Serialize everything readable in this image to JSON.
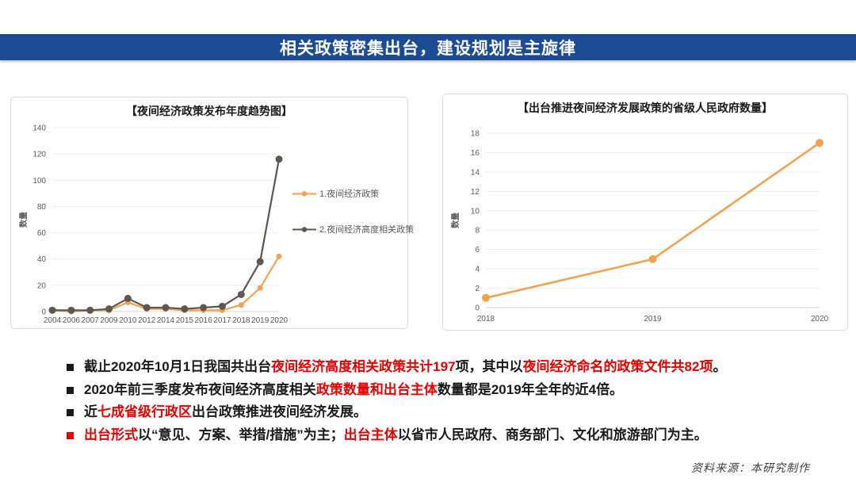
{
  "header": {
    "title": "相关政策密集出台，建设规划是主旋律",
    "bg_color": "#1C4B96",
    "text_color": "#FFFFFF"
  },
  "chart_data": [
    {
      "type": "line",
      "title": "【夜间经济政策发布年度趋势图】",
      "xlabel": "",
      "ylabel": "数量",
      "categories": [
        "2004",
        "2006",
        "2007",
        "2009",
        "2010",
        "2012",
        "2014",
        "2015",
        "2016",
        "2017",
        "2018",
        "2019",
        "2020"
      ],
      "ylim": [
        0,
        140
      ],
      "ystep": 20,
      "grid": true,
      "legend_position": "right",
      "series": [
        {
          "name": "1.夜间经济政策",
          "color": "#F0A24E",
          "values": [
            1,
            0,
            1,
            1,
            7,
            2,
            2,
            1,
            1,
            1,
            5,
            18,
            42
          ]
        },
        {
          "name": "2.夜间经济高度相关政策",
          "color": "#5F564F",
          "values": [
            1,
            1,
            1,
            2,
            10,
            3,
            3,
            2,
            3,
            4,
            13,
            38,
            116
          ]
        }
      ]
    },
    {
      "type": "line",
      "title": "【出台推进夜间经济发展政策的省级人民政府数量】",
      "xlabel": "",
      "ylabel": "数量",
      "categories": [
        "2018",
        "2019",
        "2020"
      ],
      "ylim": [
        0,
        18
      ],
      "ystep": 2,
      "grid": true,
      "legend_position": "none",
      "series": [
        {
          "name": "出台推进夜间经济发展政策的省级人民政府数量",
          "color": "#F0A24E",
          "values": [
            1,
            5,
            17
          ]
        }
      ]
    }
  ],
  "bullets": [
    {
      "marker_color": "#1A1A1A",
      "segments": [
        {
          "text": "截止2020年10月1日我国共出台",
          "color": "#1A1A1A"
        },
        {
          "text": "夜间经济高度相关政策共计197",
          "color": "#E60000"
        },
        {
          "text": "项，其中以",
          "color": "#1A1A1A"
        },
        {
          "text": "夜间经济命名的政策文件共82项",
          "color": "#E60000"
        },
        {
          "text": "。",
          "color": "#1A1A1A"
        }
      ]
    },
    {
      "marker_color": "#1A1A1A",
      "segments": [
        {
          "text": "2020年前三季度发布夜间经济高度相关",
          "color": "#1A1A1A"
        },
        {
          "text": "政策数量和出台主体",
          "color": "#E60000"
        },
        {
          "text": "数量都是2019年全年的近4倍。",
          "color": "#1A1A1A"
        }
      ]
    },
    {
      "marker_color": "#1A1A1A",
      "segments": [
        {
          "text": "近",
          "color": "#1A1A1A"
        },
        {
          "text": "七成省级行政区",
          "color": "#E60000"
        },
        {
          "text": "出台政策推进夜间经济发展。",
          "color": "#1A1A1A"
        }
      ]
    },
    {
      "marker_color": "#E60000",
      "segments": [
        {
          "text": "出台形式",
          "color": "#E60000"
        },
        {
          "text": "以“意见、方案、举措/措施”为主；",
          "color": "#1A1A1A"
        },
        {
          "text": "出台主体",
          "color": "#E60000"
        },
        {
          "text": "以省市人民政府、商务部门、文化和旅游部门为主。",
          "color": "#1A1A1A"
        }
      ]
    }
  ],
  "source": {
    "text": "资料来源：本研究制作"
  }
}
